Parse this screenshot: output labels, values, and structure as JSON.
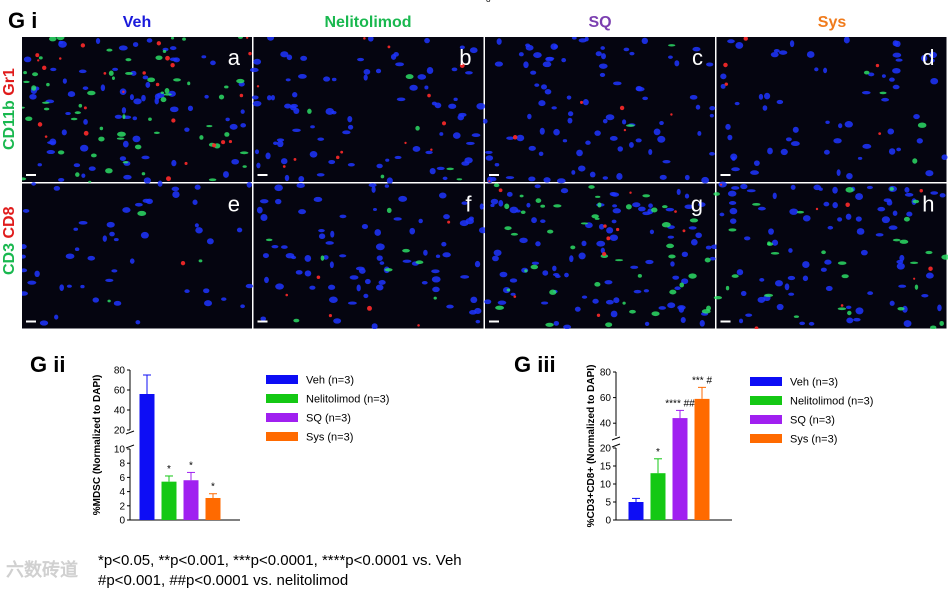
{
  "figure": {
    "section_gi": "G i",
    "section_gii": "G ii",
    "section_giii": "G iii",
    "top_mark": "ᵒ",
    "column_headers": [
      {
        "label": "Veh",
        "color": "#1a1adb"
      },
      {
        "label": "Nelitolimod",
        "color": "#19b84f"
      },
      {
        "label": "SQ",
        "color": "#7b3fb0"
      },
      {
        "label": "Sys",
        "color": "#f07b1c"
      }
    ],
    "row_labels": [
      {
        "part1": "CD11b",
        "part2": "Gr1",
        "color1": "#19b84f",
        "color2": "#e01b1b"
      },
      {
        "part1": "CD3",
        "part2": "CD8",
        "color1": "#19b84f",
        "color2": "#e01b1b"
      }
    ],
    "panels": [
      "a",
      "b",
      "c",
      "d",
      "e",
      "f",
      "g",
      "h"
    ],
    "footnotes": [
      "*p<0.05, **p<0.001, ***p<0.0001, ****p<0.0001 vs. Veh",
      "#p<0.001, ##p<0.0001 vs. nelitolimod"
    ],
    "watermark": "六数砖道"
  },
  "chart_data": [
    {
      "type": "bar",
      "id": "G ii",
      "title": "",
      "ylabel": "%MDSC (Normalized to DAPI)",
      "broken_axis": {
        "lower_range": [
          0,
          10
        ],
        "upper_range": [
          20,
          80
        ],
        "lower_ticks": [
          0,
          2,
          4,
          6,
          8,
          10
        ],
        "upper_ticks": [
          20,
          40,
          60,
          80
        ]
      },
      "categories": [
        "Veh (n=3)",
        "Nelitolimod (n=3)",
        "SQ (n=3)",
        "Sys (n=3)"
      ],
      "colors": [
        "#0d0df5",
        "#14c814",
        "#a020f0",
        "#ff6a00"
      ],
      "values": [
        56,
        5.4,
        5.6,
        3.1
      ],
      "errors": [
        19,
        0.8,
        1.1,
        0.6
      ],
      "annotations": [
        "",
        "*",
        "*",
        "*"
      ]
    },
    {
      "type": "bar",
      "id": "G iii",
      "title": "",
      "ylabel": "%CD3+CD8+ (Normalized to DAPI)",
      "broken_axis": {
        "lower_range": [
          0,
          20
        ],
        "upper_range": [
          30,
          80
        ],
        "lower_ticks": [
          0,
          5,
          10,
          15,
          20
        ],
        "upper_ticks": [
          40,
          60,
          80
        ]
      },
      "categories": [
        "Veh (n=3)",
        "Nelitolimod (n=3)",
        "SQ (n=3)",
        "Sys (n=3)"
      ],
      "colors": [
        "#0d0df5",
        "#14c814",
        "#a020f0",
        "#ff6a00"
      ],
      "values": [
        5,
        13,
        44,
        59
      ],
      "errors": [
        1,
        4,
        6,
        9
      ],
      "annotations": [
        "",
        "*",
        "**** ##",
        "*** #"
      ]
    }
  ]
}
